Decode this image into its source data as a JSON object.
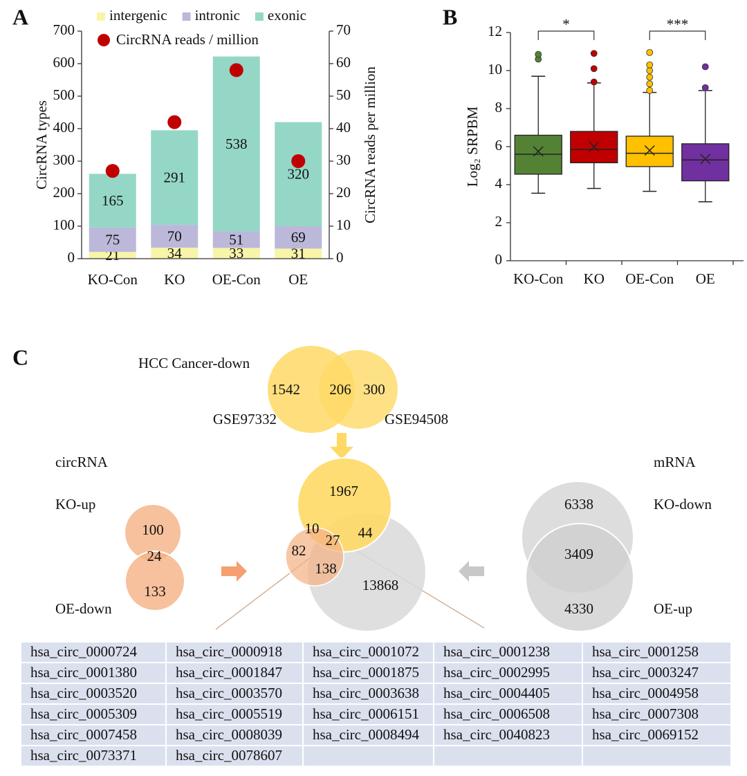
{
  "chart_data": [
    {
      "type": "bar",
      "panel": "A",
      "stacked": true,
      "categories": [
        "KO-Con",
        "KO",
        "OE-Con",
        "OE"
      ],
      "series": [
        {
          "name": "intergenic",
          "color": "#f8f4a8",
          "values": [
            21,
            34,
            33,
            31
          ]
        },
        {
          "name": "intronic",
          "color": "#bcb8da",
          "values": [
            75,
            70,
            51,
            69
          ]
        },
        {
          "name": "exonic",
          "color": "#95d7c7",
          "values": [
            165,
            291,
            538,
            320
          ]
        },
        {
          "name": "CircRNA reads / million",
          "type": "scatter",
          "axis": "y2",
          "color": "#c00000",
          "values": [
            27,
            42,
            58,
            30
          ]
        }
      ],
      "ylabel": "CircRNA types",
      "y2label": "CircRNA reads per million",
      "ylim": [
        0,
        700
      ],
      "yticks": [
        0,
        100,
        200,
        300,
        400,
        500,
        600,
        700
      ],
      "y2lim": [
        0,
        70
      ],
      "y2ticks": [
        0,
        10,
        20,
        30,
        40,
        50,
        60,
        70
      ]
    },
    {
      "type": "box",
      "panel": "B",
      "categories": [
        "KO-Con",
        "KO",
        "OE-Con",
        "OE"
      ],
      "colors": [
        "#548235",
        "#c00000",
        "#ffc000",
        "#7030a0"
      ],
      "boxes": [
        {
          "min": 3.55,
          "q1": 4.55,
          "median": 5.6,
          "q3": 6.6,
          "max": 9.7,
          "mean": 5.75,
          "outliers": [
            10.6,
            10.85
          ]
        },
        {
          "min": 3.8,
          "q1": 5.15,
          "median": 5.85,
          "q3": 6.8,
          "max": 9.35,
          "mean": 6.0,
          "outliers": [
            9.4,
            10.1,
            10.9
          ]
        },
        {
          "min": 3.65,
          "q1": 4.95,
          "median": 5.65,
          "q3": 6.55,
          "max": 8.85,
          "mean": 5.8,
          "outliers": [
            8.95,
            9.3,
            9.65,
            10.0,
            10.3,
            10.95
          ]
        },
        {
          "min": 3.1,
          "q1": 4.2,
          "median": 5.3,
          "q3": 6.15,
          "max": 8.95,
          "mean": 5.35,
          "outliers": [
            9.1,
            10.2
          ]
        }
      ],
      "ylabel": "Log₂ SRPBM",
      "ylim": [
        0,
        12
      ],
      "yticks": [
        0,
        2,
        4,
        6,
        8,
        10,
        12
      ],
      "annotations": [
        {
          "label": "*",
          "between": [
            "KO-Con",
            "KO"
          ]
        },
        {
          "label": "***",
          "between": [
            "OE-Con",
            "OE"
          ]
        }
      ]
    }
  ],
  "panel_c": {
    "label": "C",
    "hcc": {
      "title": "HCC Cancer-down",
      "sets": [
        "GSE97332",
        "GSE94508"
      ],
      "counts": [
        1542,
        206,
        300
      ]
    },
    "circ": {
      "title": "circRNA",
      "sets": [
        "KO-up",
        "OE-down"
      ],
      "counts": [
        100,
        24,
        133
      ]
    },
    "mrna": {
      "title": "mRNA",
      "sets": [
        "KO-down",
        "OE-up"
      ],
      "counts": [
        6338,
        3409,
        4330
      ]
    },
    "merged": {
      "counts": [
        1967,
        10,
        27,
        44,
        82,
        138,
        13868
      ]
    },
    "table": {
      "rows": [
        [
          "hsa_circ_0000724",
          "hsa_circ_0000918",
          "hsa_circ_0001072",
          "hsa_circ_0001238",
          "hsa_circ_0001258"
        ],
        [
          "hsa_circ_0001380",
          "hsa_circ_0001847",
          "hsa_circ_0001875",
          "hsa_circ_0002995",
          "hsa_circ_0003247"
        ],
        [
          "hsa_circ_0003520",
          "hsa_circ_0003570",
          "hsa_circ_0003638",
          "hsa_circ_0004405",
          "hsa_circ_0004958"
        ],
        [
          "hsa_circ_0005309",
          "hsa_circ_0005519",
          "hsa_circ_0006151",
          "hsa_circ_0006508",
          "hsa_circ_0007308"
        ],
        [
          "hsa_circ_0007458",
          "hsa_circ_0008039",
          "hsa_circ_0008494",
          "hsa_circ_0040823",
          "hsa_circ_0069152"
        ],
        [
          "hsa_circ_0073371",
          "hsa_circ_0078607"
        ]
      ]
    }
  }
}
